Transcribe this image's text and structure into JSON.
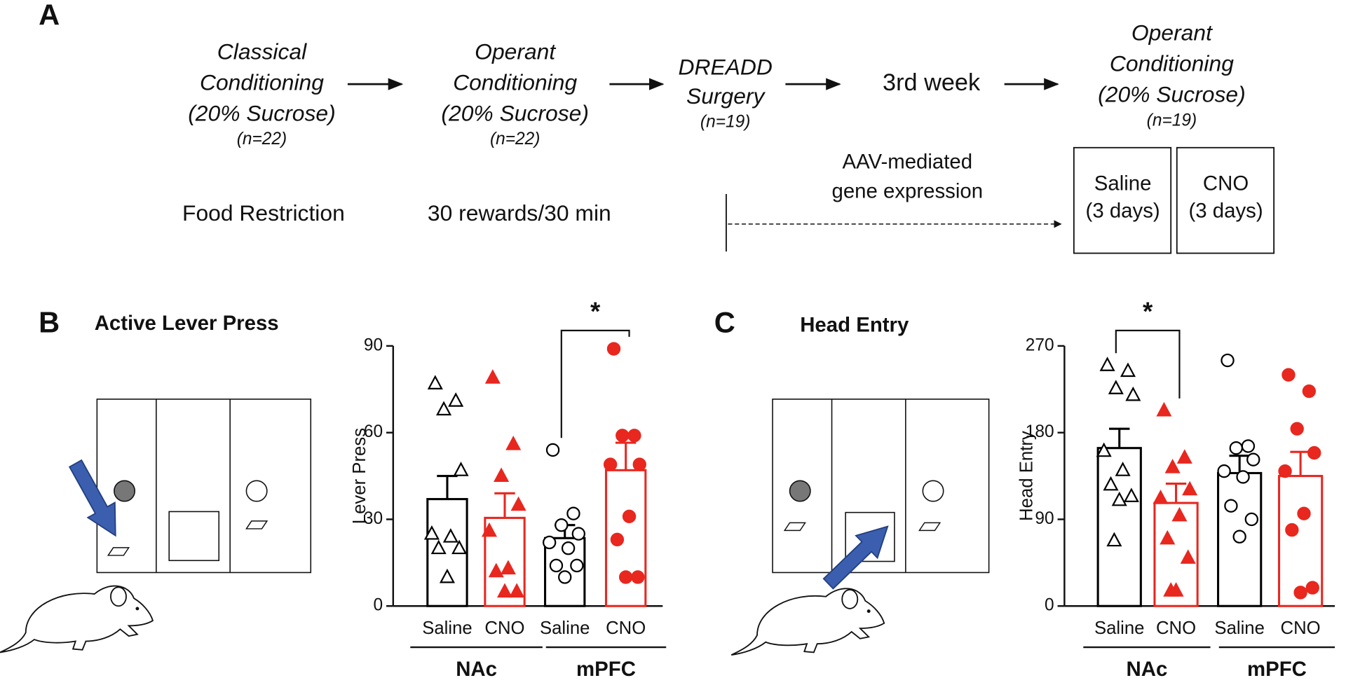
{
  "panel_a": {
    "label": "A",
    "steps": [
      {
        "lines": [
          "Classical",
          "Conditioning",
          "(20% Sucrose)"
        ],
        "n": "(n=22)"
      },
      {
        "lines": [
          "Operant",
          "Conditioning",
          "(20% Sucrose)"
        ],
        "n": "(n=22)"
      },
      {
        "lines": [
          "DREADD",
          "Surgery"
        ],
        "n": "(n=19)"
      },
      {
        "lines": [
          "3rd week"
        ]
      },
      {
        "lines": [
          "Operant",
          "Conditioning",
          "(20% Sucrose)"
        ],
        "n": "(n=19)"
      }
    ],
    "food_restriction": "Food Restriction",
    "rewards": "30 rewards/30 min",
    "expression": [
      "AAV-mediated",
      "gene expression"
    ],
    "treatments": [
      {
        "name": "Saline",
        "duration": "(3 days)"
      },
      {
        "name": "CNO",
        "duration": "(3 days)"
      }
    ]
  },
  "panel_b": {
    "label": "B",
    "title": "Active Lever Press"
  },
  "panel_c": {
    "label": "C",
    "title": "Head Entry"
  },
  "chart_data": [
    {
      "type": "bar",
      "ylabel": "Lever Press",
      "ylim": [
        0,
        90
      ],
      "yticks": [
        0,
        30,
        60,
        90
      ],
      "categories": [
        "Saline",
        "CNO",
        "Saline",
        "CNO"
      ],
      "groups": [
        "NAc",
        "mPFC"
      ],
      "colors": [
        "#000000",
        "#e8271f",
        "#000000",
        "#e8271f"
      ],
      "filled": [
        false,
        true,
        false,
        true
      ],
      "markers": [
        "triangle",
        "circle"
      ],
      "values": [
        37,
        30.5,
        23.5,
        47
      ],
      "errors": [
        8,
        8.5,
        4.5,
        9.5
      ],
      "points": [
        [
          77,
          71,
          68,
          47,
          25,
          24,
          20,
          20,
          10
        ],
        [
          79,
          56,
          45,
          35,
          26,
          13,
          12,
          5,
          5
        ],
        [
          54,
          32,
          28,
          25,
          22,
          20,
          14,
          14,
          10
        ],
        [
          89,
          59,
          59,
          49,
          49,
          31,
          23,
          10,
          10
        ]
      ],
      "significance": {
        "categories": [
          2,
          3
        ],
        "label": "*"
      }
    },
    {
      "type": "bar",
      "ylabel": "Head Entry",
      "ylim": [
        0,
        270
      ],
      "yticks": [
        0,
        90,
        180,
        270
      ],
      "categories": [
        "Saline",
        "CNO",
        "Saline",
        "CNO"
      ],
      "groups": [
        "NAc",
        "mPFC"
      ],
      "colors": [
        "#000000",
        "#e8271f",
        "#000000",
        "#e8271f"
      ],
      "filled": [
        false,
        true,
        false,
        true
      ],
      "markers": [
        "triangle",
        "circle"
      ],
      "values": [
        164,
        107,
        138,
        135
      ],
      "errors": [
        20,
        20,
        18,
        25
      ],
      "points": [
        [
          250,
          244,
          226,
          219,
          161,
          141,
          126,
          114,
          110,
          68
        ],
        [
          203,
          154,
          144,
          121,
          112,
          94,
          70,
          50,
          16,
          16
        ],
        [
          255,
          166,
          164,
          152,
          140,
          134,
          104,
          90,
          72
        ],
        [
          240,
          223,
          184,
          159,
          140,
          96,
          79,
          19,
          14
        ]
      ],
      "significance": {
        "categories": [
          0,
          1
        ],
        "label": "*"
      }
    }
  ]
}
